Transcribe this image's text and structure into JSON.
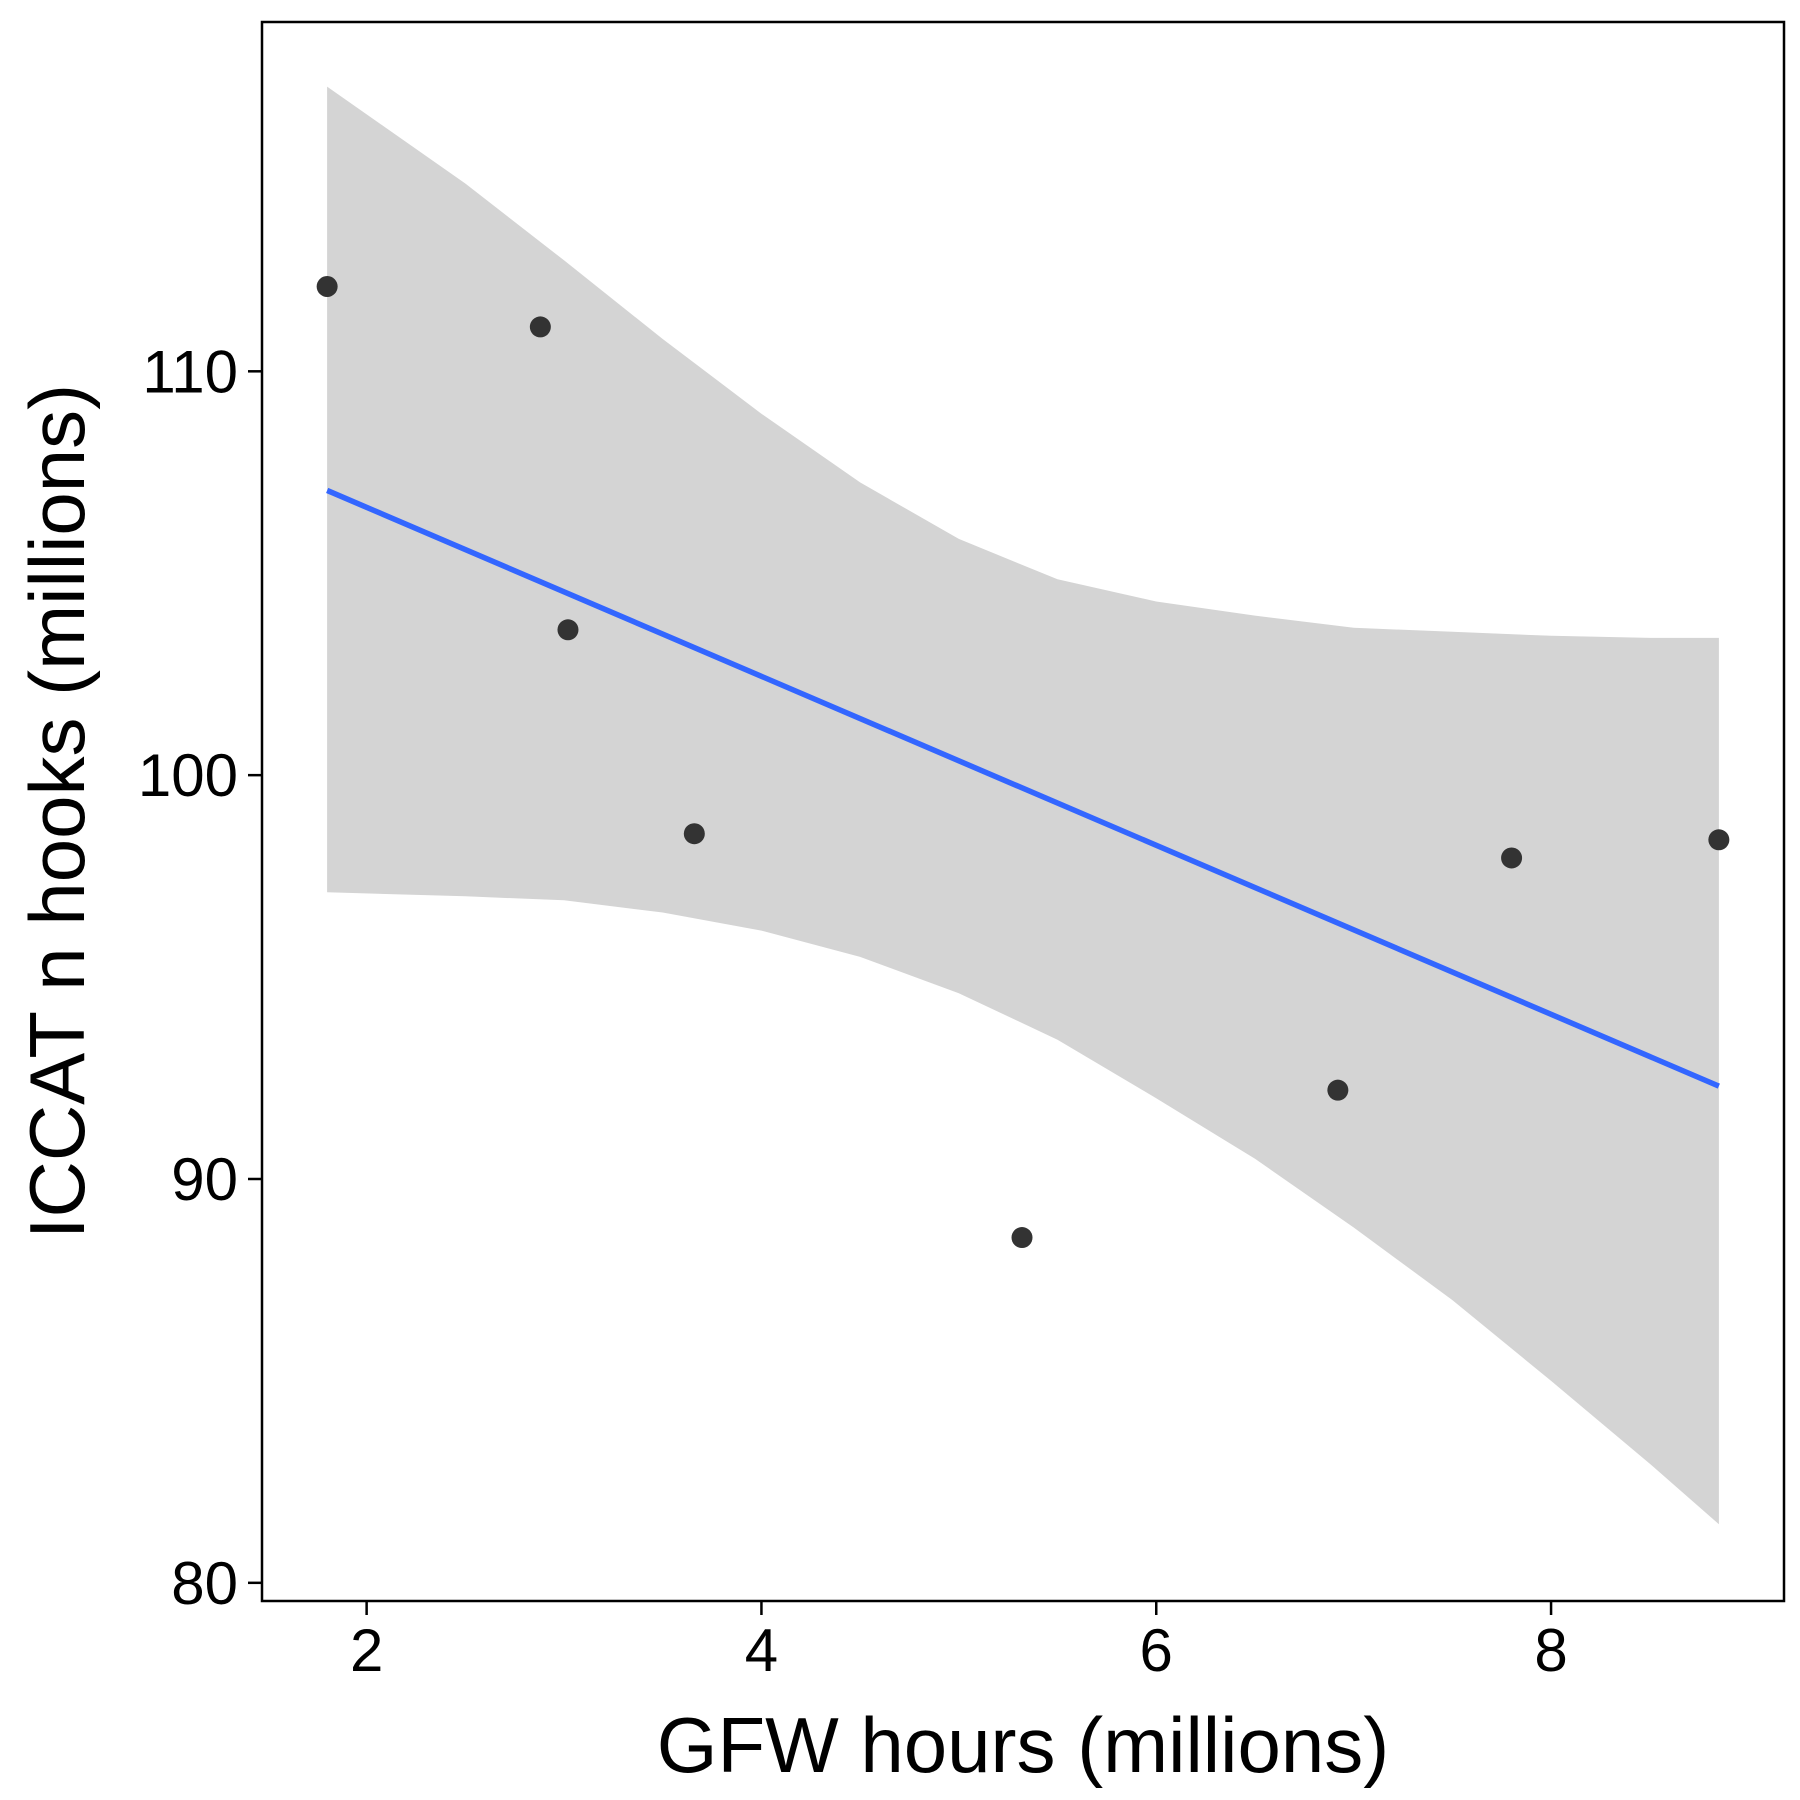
{
  "chart_data": {
    "type": "scatter",
    "title": "",
    "xlabel": "GFW hours (millions)",
    "ylabel": "ICCAT n hooks (millions)",
    "xlim": [
      1.47,
      9.18
    ],
    "ylim": [
      79.55,
      118.65
    ],
    "x_ticks": [
      2,
      4,
      6,
      8
    ],
    "y_ticks": [
      80,
      90,
      100,
      110
    ],
    "grid": false,
    "legend": "none",
    "points": [
      {
        "x": 1.8,
        "y": 112.1
      },
      {
        "x": 2.88,
        "y": 111.1
      },
      {
        "x": 3.02,
        "y": 103.6
      },
      {
        "x": 3.66,
        "y": 98.55
      },
      {
        "x": 5.32,
        "y": 88.55
      },
      {
        "x": 6.92,
        "y": 92.2
      },
      {
        "x": 7.8,
        "y": 97.95
      },
      {
        "x": 8.85,
        "y": 98.4
      }
    ],
    "fit_line": {
      "x": [
        1.8,
        8.85
      ],
      "y": [
        107.05,
        92.3
      ]
    },
    "confidence_band": {
      "x": [
        1.8,
        2.5,
        3.0,
        3.5,
        4.0,
        4.5,
        5.0,
        5.5,
        6.0,
        6.5,
        7.0,
        7.5,
        8.0,
        8.5,
        8.85
      ],
      "upper": [
        117.05,
        114.65,
        112.75,
        110.8,
        108.95,
        107.25,
        105.85,
        104.85,
        104.3,
        103.95,
        103.65,
        103.55,
        103.45,
        103.4,
        103.4
      ],
      "lower": [
        97.1,
        97.0,
        96.9,
        96.6,
        96.15,
        95.5,
        94.6,
        93.45,
        92.0,
        90.5,
        88.8,
        87.0,
        85.0,
        82.95,
        81.45
      ]
    },
    "colors": {
      "point": "#333333",
      "fit_line": "#3366ff",
      "band": "#d4d4d4",
      "axis": "#000000"
    }
  }
}
